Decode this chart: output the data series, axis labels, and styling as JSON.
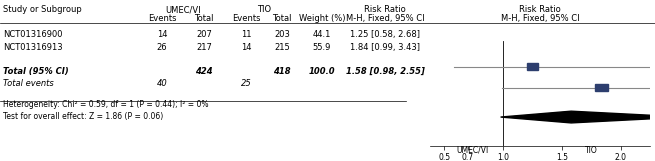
{
  "studies": [
    "NCT01316900",
    "NCT01316913"
  ],
  "umecvi_events": [
    14,
    26
  ],
  "umecvi_total": [
    207,
    217
  ],
  "tio_events": [
    11,
    14
  ],
  "tio_total": [
    203,
    215
  ],
  "weights": [
    "44.1",
    "55.9"
  ],
  "rr": [
    1.25,
    1.84
  ],
  "ci_low": [
    0.58,
    0.99
  ],
  "ci_high": [
    2.68,
    3.43
  ],
  "rr_labels": [
    "1.25 [0.58, 2.68]",
    "1.84 [0.99, 3.43]"
  ],
  "total_umecvi": 424,
  "total_tio": 418,
  "total_events_umecvi": 40,
  "total_events_tio": 25,
  "total_rr": 1.58,
  "total_ci_low": 0.98,
  "total_ci_high": 2.55,
  "total_rr_label": "1.58 [0.98, 2.55]",
  "heterogeneity_text": "Heterogeneity: Chi² = 0.59, df = 1 (P = 0.44); I² = 0%",
  "overall_effect_text": "Test for overall effect: Z = 1.86 (P = 0.06)",
  "xticks": [
    0.5,
    0.7,
    1.0,
    1.5,
    2.0
  ],
  "xmin": 0.38,
  "xmax": 2.25,
  "xlabel_left": "UMEC/VI",
  "xlabel_right": "TIO",
  "box_color": "#2d3e6e",
  "diamond_color": "#000000",
  "line_color": "#888888",
  "bg_color": "#ffffff"
}
